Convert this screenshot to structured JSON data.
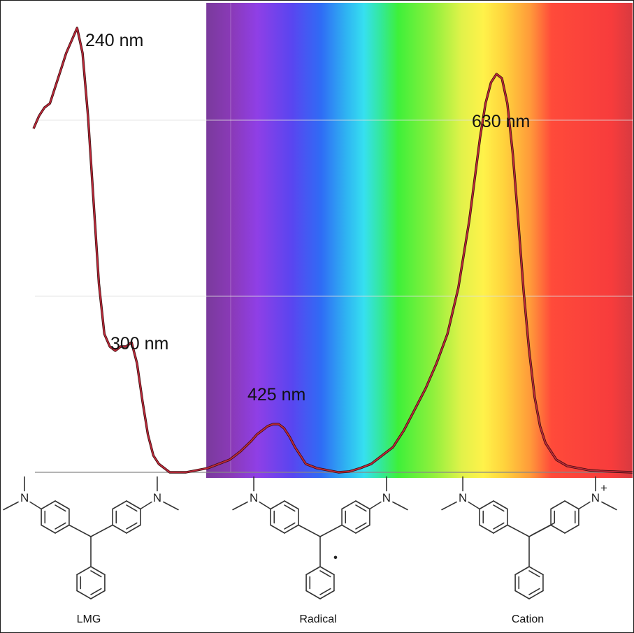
{
  "chart_data": {
    "type": "line",
    "title": "",
    "xlabel": "",
    "ylabel": "",
    "x_unit": "nm",
    "xlim": [
      200,
      750
    ],
    "ylim": [
      0,
      1.0
    ],
    "grid": true,
    "background": "visible spectrum gradient from about 380 nm to 750 nm",
    "series": [
      {
        "color": "#c0283a",
        "x": [
          200,
          205,
          210,
          215,
          220,
          225,
          230,
          235,
          240,
          245,
          250,
          255,
          260,
          265,
          270,
          275,
          280,
          285,
          290,
          295,
          300,
          305,
          310,
          315,
          320,
          325,
          330,
          340,
          350,
          360,
          370,
          380,
          390,
          400,
          405,
          410,
          415,
          420,
          425,
          430,
          435,
          440,
          445,
          450,
          460,
          470,
          480,
          490,
          500,
          510,
          520,
          530,
          540,
          550,
          560,
          570,
          580,
          590,
          595,
          600,
          605,
          610,
          615,
          620,
          625,
          630,
          635,
          640,
          645,
          650,
          655,
          660,
          665,
          670,
          680,
          690,
          700,
          710,
          720,
          730,
          740,
          750
        ],
        "y": [
          0.82,
          0.85,
          0.87,
          0.88,
          0.92,
          0.96,
          1.0,
          1.03,
          1.06,
          1.0,
          0.85,
          0.65,
          0.45,
          0.33,
          0.3,
          0.29,
          0.3,
          0.3,
          0.31,
          0.26,
          0.17,
          0.09,
          0.04,
          0.02,
          0.01,
          0.0,
          0.0,
          0.0,
          0.005,
          0.01,
          0.02,
          0.03,
          0.05,
          0.075,
          0.09,
          0.1,
          0.11,
          0.115,
          0.115,
          0.105,
          0.085,
          0.06,
          0.04,
          0.02,
          0.01,
          0.005,
          0.0,
          0.002,
          0.01,
          0.02,
          0.04,
          0.06,
          0.1,
          0.15,
          0.2,
          0.26,
          0.33,
          0.44,
          0.52,
          0.6,
          0.7,
          0.8,
          0.88,
          0.93,
          0.95,
          0.94,
          0.88,
          0.76,
          0.6,
          0.43,
          0.29,
          0.18,
          0.11,
          0.07,
          0.03,
          0.015,
          0.01,
          0.005,
          0.003,
          0.002,
          0.001,
          0.0
        ]
      }
    ],
    "annotations": [
      {
        "text": "240 nm",
        "x": 240
      },
      {
        "text": "300 nm",
        "x": 300
      },
      {
        "text": "425 nm",
        "x": 425
      },
      {
        "text": "630 nm",
        "x": 630
      }
    ]
  },
  "molecules": [
    {
      "id": "lmg",
      "label": "LMG",
      "amine_label": "N"
    },
    {
      "id": "radical",
      "label": "Radical",
      "amine_label": "N",
      "radical_mark": "•"
    },
    {
      "id": "cation",
      "label": "Cation",
      "amine_label": "N",
      "charge": "+"
    }
  ],
  "colors": {
    "curve": "#c0283a",
    "curve_outline": "#3a1010",
    "grid": "#dedede",
    "baseline": "#888888"
  }
}
